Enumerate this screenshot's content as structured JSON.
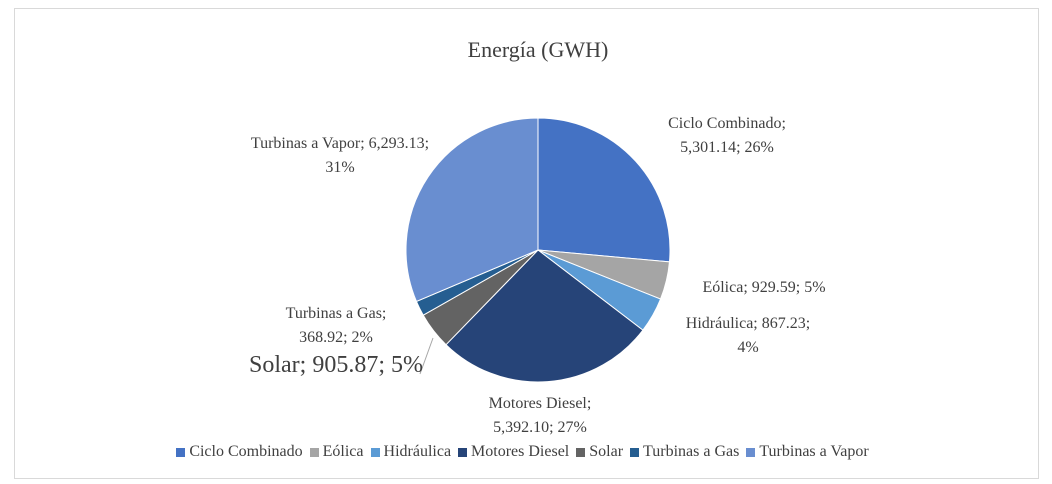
{
  "chart_data": {
    "type": "pie",
    "title": "Energía (GWH)",
    "categories": [
      "Ciclo Combinado",
      "Eólica",
      "Hidráulica",
      "Motores Diesel",
      "Solar",
      "Turbinas a Gas",
      "Turbinas a Vapor"
    ],
    "values": [
      5301.14,
      929.59,
      867.23,
      5392.1,
      905.87,
      368.92,
      6293.13
    ],
    "value_labels": [
      "Ciclo Combinado; 5,301.14; 26%",
      "Eólica; 929.59; 5%",
      "Hidráulica; 867.23; 4%",
      "Motores Diesel; 5,392.10; 27%",
      "Solar; 905.87; 5%",
      "Turbinas a Gas; 368.92; 2%",
      "Turbinas a Vapor; 6,293.13; 31%"
    ],
    "colors": [
      "#4472c4",
      "#a5a5a5",
      "#5b9bd5",
      "#264478",
      "#636363",
      "#255e91",
      "#698ed0"
    ],
    "legend": "bottom"
  }
}
